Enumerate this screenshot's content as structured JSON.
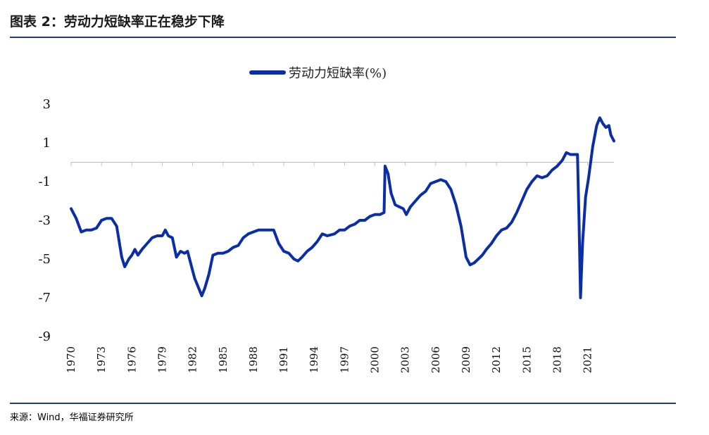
{
  "title": "图表 2：劳动力短缺率正在稳步下降",
  "source": "来源：Wind，华福证券研究所",
  "colors": {
    "series": "#0a2ea8",
    "rule": "#1f3e73",
    "axis": "#bfbfbf"
  },
  "chart_data": {
    "type": "line",
    "title": "",
    "xlabel": "",
    "ylabel": "",
    "ylim": [
      -9,
      3
    ],
    "xlim": [
      1970,
      2023.6
    ],
    "y_ticks": [
      3,
      1,
      -1,
      -3,
      -5,
      -7,
      -9
    ],
    "x_ticks": [
      "1970",
      "1973",
      "1976",
      "1979",
      "1982",
      "1985",
      "1988",
      "1991",
      "1994",
      "1997",
      "2000",
      "2003",
      "2006",
      "2009",
      "2012",
      "2015",
      "2018",
      "2021"
    ],
    "legend": {
      "position": "top-center",
      "entries": [
        "劳动力短缺率(%)"
      ]
    },
    "grid": false,
    "series": [
      {
        "name": "劳动力短缺率(%)",
        "points": [
          [
            1970.0,
            -2.4
          ],
          [
            1970.5,
            -2.9
          ],
          [
            1971.0,
            -3.6
          ],
          [
            1971.5,
            -3.5
          ],
          [
            1972.0,
            -3.5
          ],
          [
            1972.5,
            -3.4
          ],
          [
            1973.0,
            -3.0
          ],
          [
            1973.5,
            -2.9
          ],
          [
            1974.0,
            -2.9
          ],
          [
            1974.5,
            -3.3
          ],
          [
            1975.0,
            -4.9
          ],
          [
            1975.3,
            -5.4
          ],
          [
            1975.7,
            -5.0
          ],
          [
            1976.0,
            -4.8
          ],
          [
            1976.3,
            -4.5
          ],
          [
            1976.6,
            -4.8
          ],
          [
            1977.0,
            -4.5
          ],
          [
            1977.5,
            -4.2
          ],
          [
            1978.0,
            -3.9
          ],
          [
            1978.5,
            -3.8
          ],
          [
            1979.0,
            -3.8
          ],
          [
            1979.3,
            -3.5
          ],
          [
            1979.6,
            -3.8
          ],
          [
            1980.0,
            -3.9
          ],
          [
            1980.4,
            -4.9
          ],
          [
            1980.8,
            -4.6
          ],
          [
            1981.2,
            -4.7
          ],
          [
            1981.5,
            -4.6
          ],
          [
            1981.8,
            -5.2
          ],
          [
            1982.2,
            -6.0
          ],
          [
            1982.6,
            -6.5
          ],
          [
            1982.9,
            -6.9
          ],
          [
            1983.2,
            -6.5
          ],
          [
            1983.6,
            -5.8
          ],
          [
            1984.0,
            -4.8
          ],
          [
            1984.5,
            -4.7
          ],
          [
            1985.0,
            -4.7
          ],
          [
            1985.5,
            -4.6
          ],
          [
            1986.0,
            -4.4
          ],
          [
            1986.5,
            -4.3
          ],
          [
            1987.0,
            -3.9
          ],
          [
            1987.5,
            -3.7
          ],
          [
            1988.0,
            -3.6
          ],
          [
            1988.5,
            -3.5
          ],
          [
            1989.0,
            -3.5
          ],
          [
            1989.5,
            -3.5
          ],
          [
            1990.0,
            -3.5
          ],
          [
            1990.5,
            -4.2
          ],
          [
            1991.0,
            -4.6
          ],
          [
            1991.5,
            -4.7
          ],
          [
            1992.0,
            -5.0
          ],
          [
            1992.4,
            -5.1
          ],
          [
            1992.8,
            -4.9
          ],
          [
            1993.3,
            -4.6
          ],
          [
            1993.8,
            -4.4
          ],
          [
            1994.3,
            -4.1
          ],
          [
            1994.8,
            -3.7
          ],
          [
            1995.3,
            -3.8
          ],
          [
            1996.0,
            -3.7
          ],
          [
            1996.5,
            -3.5
          ],
          [
            1997.0,
            -3.5
          ],
          [
            1997.5,
            -3.3
          ],
          [
            1998.0,
            -3.2
          ],
          [
            1998.5,
            -3.0
          ],
          [
            1999.0,
            -3.0
          ],
          [
            1999.5,
            -2.8
          ],
          [
            2000.0,
            -2.7
          ],
          [
            2000.5,
            -2.7
          ],
          [
            2000.9,
            -2.6
          ],
          [
            2001.0,
            -0.2
          ],
          [
            2001.3,
            -0.6
          ],
          [
            2001.6,
            -1.6
          ],
          [
            2002.0,
            -2.2
          ],
          [
            2002.4,
            -2.3
          ],
          [
            2002.8,
            -2.4
          ],
          [
            2003.1,
            -2.7
          ],
          [
            2003.5,
            -2.3
          ],
          [
            2004.0,
            -2.0
          ],
          [
            2004.5,
            -1.7
          ],
          [
            2005.0,
            -1.5
          ],
          [
            2005.5,
            -1.1
          ],
          [
            2006.0,
            -1.0
          ],
          [
            2006.5,
            -0.9
          ],
          [
            2007.0,
            -1.0
          ],
          [
            2007.5,
            -1.4
          ],
          [
            2008.0,
            -2.2
          ],
          [
            2008.5,
            -3.3
          ],
          [
            2009.0,
            -4.9
          ],
          [
            2009.4,
            -5.3
          ],
          [
            2009.8,
            -5.2
          ],
          [
            2010.2,
            -5.0
          ],
          [
            2010.6,
            -4.8
          ],
          [
            2011.0,
            -4.5
          ],
          [
            2011.5,
            -4.2
          ],
          [
            2012.0,
            -3.8
          ],
          [
            2012.5,
            -3.5
          ],
          [
            2013.0,
            -3.4
          ],
          [
            2013.5,
            -3.1
          ],
          [
            2014.0,
            -2.6
          ],
          [
            2014.5,
            -2.0
          ],
          [
            2015.0,
            -1.4
          ],
          [
            2015.5,
            -1.0
          ],
          [
            2016.0,
            -0.7
          ],
          [
            2016.5,
            -0.8
          ],
          [
            2017.0,
            -0.7
          ],
          [
            2017.5,
            -0.4
          ],
          [
            2018.0,
            -0.2
          ],
          [
            2018.5,
            0.1
          ],
          [
            2018.9,
            0.5
          ],
          [
            2019.3,
            0.4
          ],
          [
            2019.7,
            0.4
          ],
          [
            2020.0,
            0.4
          ],
          [
            2020.15,
            -3.0
          ],
          [
            2020.3,
            -7.0
          ],
          [
            2020.5,
            -4.2
          ],
          [
            2020.8,
            -1.8
          ],
          [
            2021.1,
            -0.8
          ],
          [
            2021.5,
            0.8
          ],
          [
            2021.9,
            1.9
          ],
          [
            2022.2,
            2.3
          ],
          [
            2022.5,
            2.0
          ],
          [
            2022.8,
            1.8
          ],
          [
            2023.1,
            1.9
          ],
          [
            2023.3,
            1.4
          ],
          [
            2023.6,
            1.1
          ]
        ]
      }
    ]
  }
}
